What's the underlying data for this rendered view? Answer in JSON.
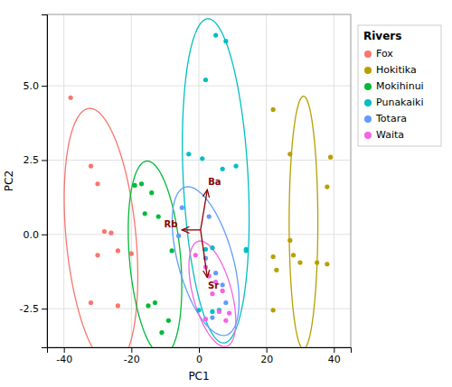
{
  "chart_data": {
    "type": "scatter",
    "xlabel": "PC1",
    "ylabel": "PC2",
    "xlim": [
      -45,
      45
    ],
    "ylim": [
      -3.8,
      7.4
    ],
    "xticks": [
      -40,
      -20,
      0,
      20,
      40
    ],
    "yticks": [
      -2.5,
      {
        "value": 0.0,
        "label": "0.0"
      },
      2.5,
      {
        "value": 5.0,
        "label": "5.0"
      }
    ],
    "grid": true,
    "legend": "right",
    "legend_title": "Rivers",
    "series": [
      {
        "name": "Fox",
        "color": "#F8766D",
        "x": [
          -38,
          -32,
          -30,
          -28,
          -26,
          -24,
          -30,
          -32,
          -24,
          -20
        ],
        "values": [
          4.6,
          2.3,
          1.7,
          0.1,
          0.05,
          -0.55,
          -0.7,
          -2.3,
          -2.4,
          -0.65
        ],
        "ellipse": {
          "cx": -29,
          "cy": -0.1,
          "width": 22,
          "height": 8.2,
          "angle": -8
        }
      },
      {
        "name": "Hokitika",
        "color": "#B79F00",
        "x": [
          22,
          27,
          39,
          38,
          27,
          28,
          22,
          35,
          30,
          23,
          22,
          38
        ],
        "values": [
          4.2,
          2.7,
          2.6,
          1.6,
          -0.2,
          -0.7,
          -0.75,
          -0.95,
          -0.95,
          -1.2,
          -2.55,
          -1.0
        ],
        "ellipse": {
          "cx": 31,
          "cy": 0.4,
          "width": 8.5,
          "height": 8.5,
          "angle": 0
        }
      },
      {
        "name": "Mokihinui",
        "color": "#00BA38",
        "x": [
          -17,
          -19,
          -14,
          -16,
          -12,
          -8,
          -13,
          -15,
          -9,
          -11
        ],
        "values": [
          1.7,
          1.65,
          1.4,
          0.7,
          0.6,
          -0.55,
          -2.3,
          -2.4,
          -2.9,
          -3.3
        ],
        "ellipse": {
          "cx": -13,
          "cy": -0.8,
          "width": 16,
          "height": 6.2,
          "angle": -8
        }
      },
      {
        "name": "Punakaiki",
        "color": "#00BFC4",
        "x": [
          -3,
          1,
          2,
          5,
          8,
          11,
          7,
          4,
          2,
          0,
          4,
          14,
          14,
          6
        ],
        "values": [
          2.7,
          2.55,
          5.2,
          6.7,
          6.5,
          2.3,
          2.2,
          -0.45,
          -0.5,
          -2.55,
          -2.6,
          -0.55,
          -0.5,
          -2.55
        ],
        "ellipse": {
          "cx": 5,
          "cy": 1.8,
          "width": 20,
          "height": 10.5,
          "angle": -10
        }
      },
      {
        "name": "Totara",
        "color": "#619CFF",
        "x": [
          -5,
          -6,
          3,
          2,
          5,
          7,
          4,
          8
        ],
        "values": [
          0.9,
          -0.05,
          0.6,
          -0.8,
          -1.3,
          -1.7,
          -2.8,
          -2.3
        ],
        "ellipse": {
          "cx": 2,
          "cy": -0.9,
          "width": 20,
          "height": 4.2,
          "angle": -8
        }
      },
      {
        "name": "Waita",
        "color": "#F564E3",
        "x": [
          -1,
          2,
          3,
          5,
          7,
          6,
          2,
          8,
          4,
          9
        ],
        "values": [
          -0.7,
          -1.1,
          -1.4,
          -1.6,
          -1.9,
          -2.6,
          -2.85,
          -2.9,
          -2.0,
          -2.65
        ],
        "ellipse": {
          "cx": 4,
          "cy": -2.0,
          "width": 14,
          "height": 3.0,
          "angle": -8
        }
      }
    ],
    "annotations": {
      "color": "#8B0000",
      "origin": [
        0.5,
        0.15
      ],
      "arrows": [
        {
          "text": "Ba",
          "x": 2.5,
          "y": 1.5
        },
        {
          "text": "Rb",
          "x": -5.0,
          "y": 0.15
        },
        {
          "text": "Sr",
          "x": 2.5,
          "y": -1.45
        }
      ]
    }
  }
}
